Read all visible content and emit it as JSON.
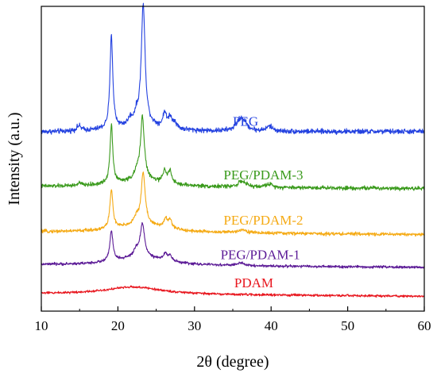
{
  "chart_data": {
    "type": "line",
    "title": "",
    "xlabel": "2θ (degree)",
    "ylabel": "Intensity (a.u.)",
    "xlim": [
      10,
      60
    ],
    "xticks": [
      "10",
      "20",
      "30",
      "40",
      "50",
      "60"
    ],
    "yticks_visible": false,
    "grid": false,
    "legend": "inline labels",
    "offset_unit": "arbitrary intensity (stacked)",
    "series": [
      {
        "name": "PEG",
        "color": "#2442e0",
        "baseline": 202,
        "noise": 3.0,
        "drift": [
          [
            10,
            0
          ],
          [
            60,
            1
          ]
        ],
        "peaks": [
          {
            "x": 14.9,
            "h": 6,
            "w": 0.35
          },
          {
            "x": 19.15,
            "h": 113,
            "w": 0.22
          },
          {
            "x": 21.6,
            "h": 7,
            "w": 0.3
          },
          {
            "x": 22.4,
            "h": 10,
            "w": 0.35
          },
          {
            "x": 23.3,
            "h": 146,
            "w": 0.3
          },
          {
            "x": 26.1,
            "h": 18,
            "w": 0.25
          },
          {
            "x": 26.8,
            "h": 13,
            "w": 0.25
          },
          {
            "x": 27.4,
            "h": 8,
            "w": 0.3
          },
          {
            "x": 35.9,
            "h": 10,
            "w": 0.6
          },
          {
            "x": 36.4,
            "h": 9,
            "w": 0.6
          },
          {
            "x": 39.8,
            "h": 6,
            "w": 0.5
          },
          {
            "x": 23.0,
            "h": 8,
            "w": 4
          }
        ]
      },
      {
        "name": "PEG/PDAM-3",
        "color": "#3a9a1c",
        "baseline": 136,
        "noise": 2.4,
        "drift": [
          [
            10,
            0
          ],
          [
            60,
            -2
          ]
        ],
        "peaks": [
          {
            "x": 15.0,
            "h": 3,
            "w": 0.3
          },
          {
            "x": 19.15,
            "h": 71,
            "w": 0.22
          },
          {
            "x": 22.5,
            "h": 9,
            "w": 0.4
          },
          {
            "x": 23.2,
            "h": 76,
            "w": 0.3
          },
          {
            "x": 26.1,
            "h": 16,
            "w": 0.25
          },
          {
            "x": 26.8,
            "h": 15,
            "w": 0.25
          },
          {
            "x": 36.2,
            "h": 7,
            "w": 0.6
          },
          {
            "x": 39.7,
            "h": 4,
            "w": 0.5
          },
          {
            "x": 23.0,
            "h": 8,
            "w": 4
          }
        ]
      },
      {
        "name": "PEG/PDAM-2",
        "color": "#f5aa14",
        "baseline": 81,
        "noise": 2.0,
        "drift": [
          [
            10,
            0
          ],
          [
            60,
            -3
          ]
        ],
        "peaks": [
          {
            "x": 19.15,
            "h": 47,
            "w": 0.24
          },
          {
            "x": 22.4,
            "h": 8,
            "w": 0.4
          },
          {
            "x": 23.3,
            "h": 63,
            "w": 0.32
          },
          {
            "x": 26.2,
            "h": 10,
            "w": 0.3
          },
          {
            "x": 26.8,
            "h": 10,
            "w": 0.3
          },
          {
            "x": 36.2,
            "h": 4,
            "w": 0.6
          },
          {
            "x": 23.0,
            "h": 9,
            "w": 4
          }
        ]
      },
      {
        "name": "PEG/PDAM-1",
        "color": "#5b1a96",
        "baseline": 41,
        "noise": 1.6,
        "drift": [
          [
            10,
            0
          ],
          [
            60,
            -3
          ]
        ],
        "peaks": [
          {
            "x": 19.15,
            "h": 36,
            "w": 0.25
          },
          {
            "x": 22.4,
            "h": 8,
            "w": 0.4
          },
          {
            "x": 23.2,
            "h": 40,
            "w": 0.34
          },
          {
            "x": 26.2,
            "h": 8,
            "w": 0.3
          },
          {
            "x": 26.8,
            "h": 7,
            "w": 0.3
          },
          {
            "x": 36.0,
            "h": 3,
            "w": 0.6
          },
          {
            "x": 23.0,
            "h": 10,
            "w": 4
          }
        ]
      },
      {
        "name": "PDAM",
        "color": "#e8161e",
        "baseline": 6,
        "noise": 1.4,
        "drift": [
          [
            10,
            0
          ],
          [
            60,
            -3
          ]
        ],
        "peaks": [
          {
            "x": 22.0,
            "h": 9,
            "w": 4.5
          }
        ]
      }
    ],
    "labels": [
      {
        "series": "PEG",
        "text": "PEG",
        "x": 35.0,
        "y": 210
      },
      {
        "series": "PEG/PDAM-3",
        "text": "PEG/PDAM-3",
        "x": 33.8,
        "y": 145
      },
      {
        "series": "PEG/PDAM-2",
        "text": "PEG/PDAM-2",
        "x": 33.8,
        "y": 90
      },
      {
        "series": "PEG/PDAM-1",
        "text": "PEG/PDAM-1",
        "x": 33.4,
        "y": 48
      },
      {
        "series": "PDAM",
        "text": "PDAM",
        "x": 35.2,
        "y": 14
      }
    ],
    "ylim": [
      -15,
      355
    ]
  }
}
